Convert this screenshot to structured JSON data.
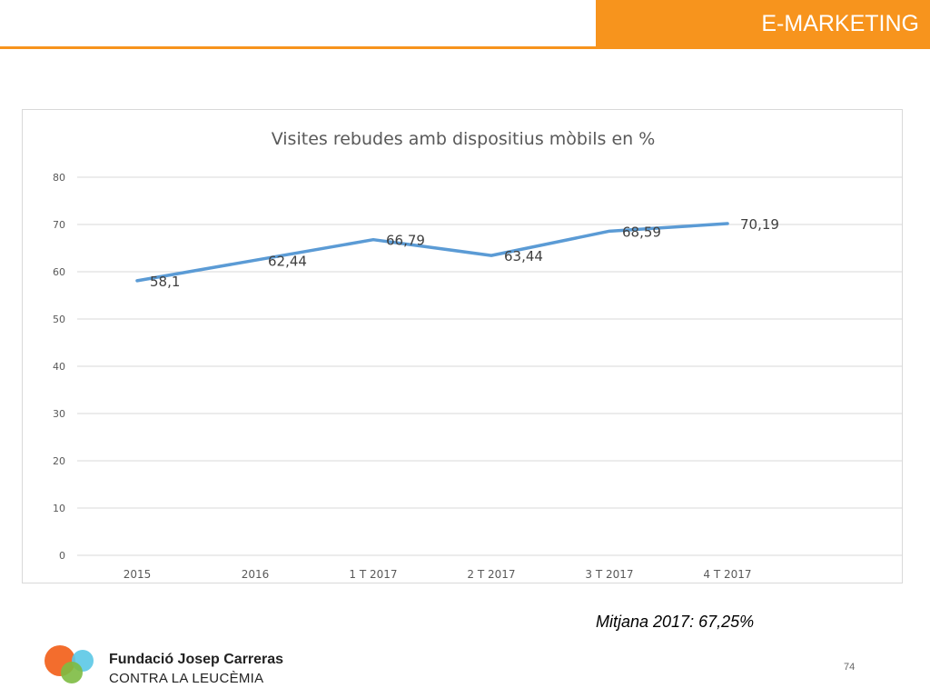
{
  "header": {
    "title": "E-MARKETING"
  },
  "colors": {
    "accent": "#f7941d",
    "series": "#5b9bd5",
    "grid": "#d9d9d9"
  },
  "chart_data": {
    "type": "line",
    "title": "Visites rebudes amb dispositius mòbils en %",
    "xlabel": "",
    "ylabel": "",
    "categories": [
      "2015",
      "2016",
      "1 T 2017",
      "2 T 2017",
      "3 T 2017",
      "4 T 2017"
    ],
    "values": [
      58.1,
      62.44,
      66.79,
      63.44,
      68.59,
      70.19
    ],
    "data_labels": [
      "58,1",
      "62,44",
      "66,79",
      "63,44",
      "68,59",
      "70,19"
    ],
    "ylim": [
      0,
      80
    ],
    "yticks": [
      0,
      10,
      20,
      30,
      40,
      50,
      60,
      70,
      80
    ],
    "grid": true,
    "legend": "none"
  },
  "note": {
    "average": "Mitjana 2017: 67,25%"
  },
  "logo": {
    "name": "Fundació Josep Carreras",
    "tagline": "CONTRA LA LEUCÈMIA",
    "icon": "overlapping-circles-icon"
  },
  "footer": {
    "page_number": "74"
  }
}
